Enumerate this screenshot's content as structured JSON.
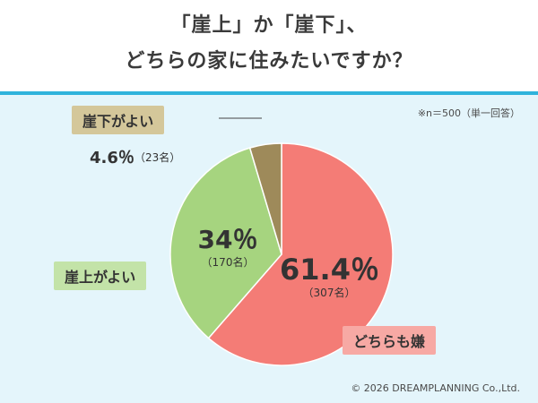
{
  "title": {
    "line1": "「崖上」か「崖下」、",
    "line2": "どちらの家に住みたいですか？"
  },
  "note": "※n＝500（単一回答）",
  "copyright": "© 2026 DREAMPLANNING Co.,Ltd.",
  "colors": {
    "background": "#e4f5fb",
    "header_rule": "#2fb3dc",
    "dochiramoiya": "#f47c76",
    "gaiue": "#a6d47f",
    "gaishita": "#9e8a5a",
    "dochiramoiya_label": "#f7a9a4",
    "gaiue_label": "#c3e3a8",
    "gaishita_label": "#d4c79a"
  },
  "chart_data": {
    "type": "pie",
    "slices": [
      {
        "label": "どちらも嫌",
        "value": 61.4,
        "percent_label": "61.4％",
        "count_label": "（307名）"
      },
      {
        "label": "崖上がよい",
        "value": 34.0,
        "percent_label": "34％",
        "count_label": "（170名）"
      },
      {
        "label": "崖下がよい",
        "value": 4.6,
        "percent_label": "4.6％",
        "count_label": "（23名）"
      }
    ]
  }
}
